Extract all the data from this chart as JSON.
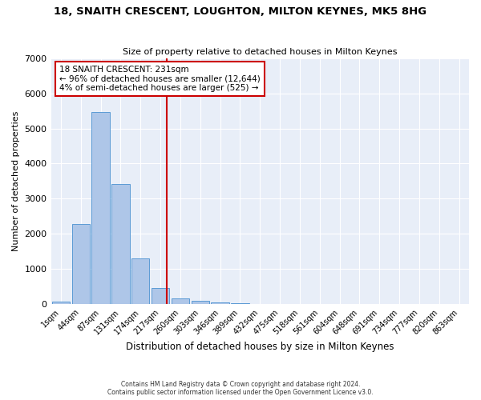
{
  "title": "18, SNAITH CRESCENT, LOUGHTON, MILTON KEYNES, MK5 8HG",
  "subtitle": "Size of property relative to detached houses in Milton Keynes",
  "xlabel": "Distribution of detached houses by size in Milton Keynes",
  "ylabel": "Number of detached properties",
  "categories": [
    "1sqm",
    "44sqm",
    "87sqm",
    "131sqm",
    "174sqm",
    "217sqm",
    "260sqm",
    "303sqm",
    "346sqm",
    "389sqm",
    "432sqm",
    "475sqm",
    "518sqm",
    "561sqm",
    "604sqm",
    "648sqm",
    "691sqm",
    "734sqm",
    "777sqm",
    "820sqm",
    "863sqm"
  ],
  "bar_heights": [
    80,
    2280,
    5460,
    3430,
    1310,
    470,
    160,
    105,
    45,
    20,
    5,
    0,
    0,
    0,
    0,
    0,
    0,
    0,
    0,
    0,
    0
  ],
  "bar_color": "#aec6e8",
  "bar_edge_color": "#5b9bd5",
  "annotation_box_text": "18 SNAITH CRESCENT: 231sqm\n← 96% of detached houses are smaller (12,644)\n4% of semi-detached houses are larger (525) →",
  "annotation_box_color": "#ffffff",
  "annotation_box_edge_color": "#cc0000",
  "vline_color": "#cc0000",
  "background_color": "#e8eef8",
  "grid_color": "#ffffff",
  "ylim": [
    0,
    7000
  ],
  "yticks": [
    0,
    1000,
    2000,
    3000,
    4000,
    5000,
    6000,
    7000
  ],
  "footer_line1": "Contains HM Land Registry data © Crown copyright and database right 2024.",
  "footer_line2": "Contains public sector information licensed under the Open Government Licence v3.0."
}
